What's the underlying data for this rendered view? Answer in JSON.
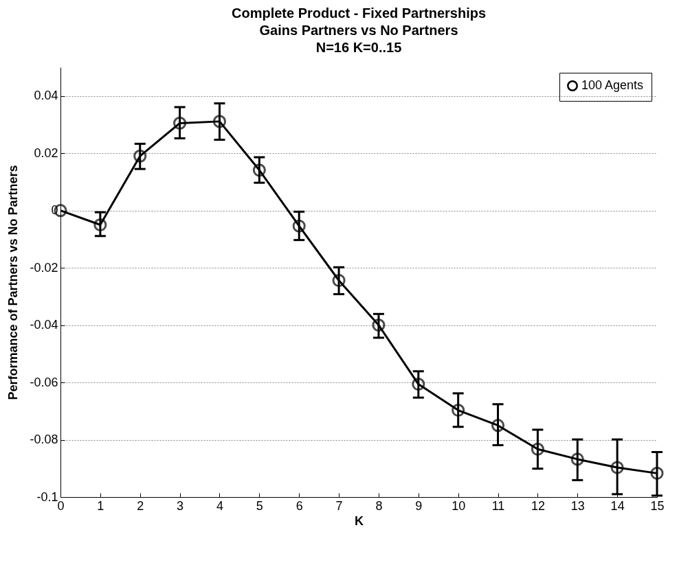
{
  "chart_data": {
    "type": "line",
    "title": "Complete Product - Fixed Partnerships\nGains Partners vs No Partners\nN=16 K=0..15",
    "xlabel": "K",
    "ylabel": "Performance of Partners vs No Partners",
    "x": [
      0,
      1,
      2,
      3,
      4,
      5,
      6,
      7,
      8,
      9,
      10,
      11,
      12,
      13,
      14,
      15
    ],
    "series": [
      {
        "name": "100 Agents",
        "color": "#000000",
        "values": [
          0,
          -0.005,
          0.019,
          0.0305,
          0.0311,
          0.0141,
          -0.0054,
          -0.0244,
          -0.04,
          -0.0606,
          -0.0697,
          -0.075,
          -0.0833,
          -0.0868,
          -0.0897,
          -0.0917
        ],
        "errors": [
          null,
          [
            -0.0089,
            -0.0006
          ],
          [
            0.0145,
            0.0233
          ],
          [
            0.0252,
            0.0361
          ],
          [
            0.0247,
            0.0374
          ],
          [
            0.0097,
            0.0186
          ],
          [
            -0.0103,
            -0.0004
          ],
          [
            -0.0292,
            -0.0198
          ],
          [
            -0.0444,
            -0.0361
          ],
          [
            -0.0653,
            -0.0561
          ],
          [
            -0.0755,
            -0.0638
          ],
          [
            -0.0819,
            -0.0676
          ],
          [
            -0.0901,
            -0.0765
          ],
          [
            -0.0941,
            -0.0799
          ],
          [
            -0.099,
            -0.0799
          ],
          [
            -0.0995,
            -0.0843
          ]
        ]
      }
    ],
    "xlim": [
      0,
      15
    ],
    "xticks": [
      0,
      1,
      2,
      3,
      4,
      5,
      6,
      7,
      8,
      9,
      10,
      11,
      12,
      13,
      14,
      15
    ],
    "ylim": [
      -0.1,
      0.05
    ],
    "yticks": [
      -0.1,
      -0.08,
      -0.06,
      -0.04,
      -0.02,
      0,
      0.02,
      0.04
    ],
    "grid": "y",
    "legend": "top right",
    "marker": "circle",
    "line_style": "solid"
  }
}
